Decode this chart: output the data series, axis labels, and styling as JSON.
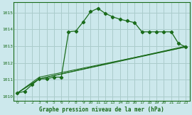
{
  "title": "Graphe pression niveau de la mer (hPa)",
  "bg_color": "#cce8ec",
  "grid_color": "#aacccc",
  "line_color": "#1a6b1a",
  "xlim": [
    -0.5,
    23.5
  ],
  "ylim": [
    1009.75,
    1015.6
  ],
  "xticks": [
    0,
    1,
    2,
    3,
    4,
    5,
    6,
    7,
    8,
    9,
    10,
    11,
    12,
    13,
    14,
    15,
    16,
    17,
    18,
    19,
    20,
    21,
    22,
    23
  ],
  "yticks": [
    1010,
    1011,
    1012,
    1013,
    1014,
    1015
  ],
  "series1_x": [
    0,
    1,
    2,
    3,
    4,
    5,
    6,
    7,
    8,
    9,
    10,
    11,
    12,
    13,
    14,
    15,
    16,
    17,
    18,
    19,
    20,
    21,
    22,
    23
  ],
  "series1_y": [
    1010.2,
    1010.3,
    1010.7,
    1011.05,
    1011.05,
    1011.15,
    1011.15,
    1013.85,
    1013.9,
    1014.45,
    1015.05,
    1015.25,
    1014.95,
    1014.75,
    1014.6,
    1014.5,
    1014.4,
    1013.85,
    1013.85,
    1013.85,
    1013.85,
    1013.85,
    1013.15,
    1012.95
  ],
  "series2_x": [
    0,
    3,
    23
  ],
  "series2_y": [
    1010.2,
    1011.05,
    1013.0
  ],
  "series3_x": [
    0,
    3,
    23
  ],
  "series3_y": [
    1010.2,
    1011.05,
    1012.95
  ],
  "series4_x": [
    0,
    3,
    23
  ],
  "series4_y": [
    1010.2,
    1011.15,
    1012.95
  ]
}
